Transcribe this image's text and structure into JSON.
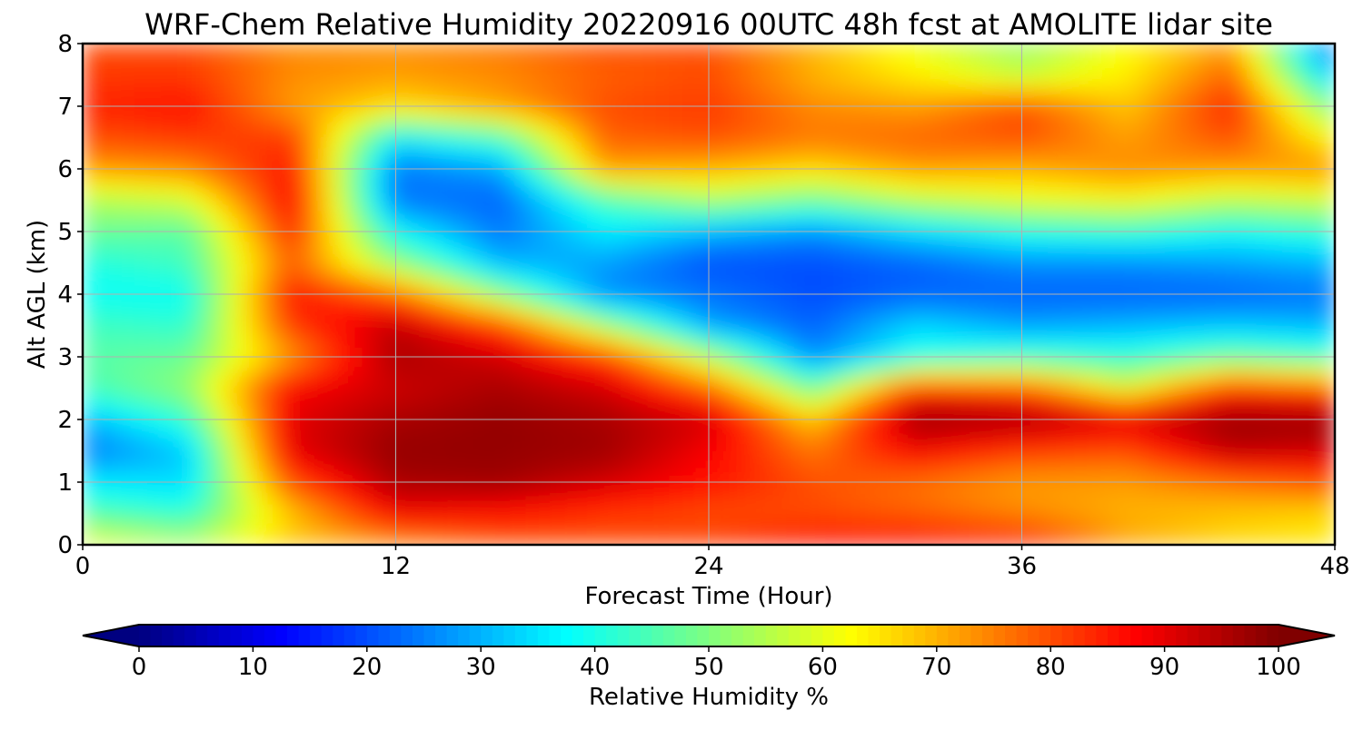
{
  "chart_data": {
    "type": "heatmap",
    "title": "WRF-Chem Relative Humidity 20220916 00UTC 48h fcst at AMOLITE lidar site",
    "xlabel": "Forecast Time (Hour)",
    "ylabel": "Alt AGL (km)",
    "xlim": [
      0,
      48
    ],
    "ylim": [
      0,
      8
    ],
    "x_ticks": [
      "0",
      "12",
      "24",
      "36",
      "48"
    ],
    "y_ticks": [
      "0",
      "1",
      "2",
      "3",
      "4",
      "5",
      "6",
      "7",
      "8"
    ],
    "grid": true,
    "colormap": "jet",
    "colorbar": {
      "label": "Relative Humidity %",
      "orientation": "horizontal",
      "extend": "both",
      "range": [
        0,
        100
      ],
      "ticks": [
        "0",
        "10",
        "20",
        "30",
        "40",
        "50",
        "60",
        "70",
        "80",
        "90",
        "100"
      ]
    },
    "x": [
      0,
      4,
      8,
      12,
      16,
      20,
      24,
      28,
      32,
      36,
      40,
      44,
      48
    ],
    "y": [
      0,
      0.5,
      1,
      1.5,
      2,
      2.5,
      3,
      3.5,
      4,
      4.5,
      5,
      5.5,
      6,
      6.5,
      7,
      7.5,
      8
    ],
    "z": [
      [
        62,
        56,
        68,
        72,
        78,
        80,
        82,
        88,
        90,
        88,
        72,
        66,
        64
      ],
      [
        46,
        42,
        68,
        88,
        86,
        82,
        80,
        80,
        78,
        74,
        70,
        68,
        66
      ],
      [
        36,
        34,
        80,
        96,
        97,
        92,
        86,
        80,
        76,
        72,
        72,
        76,
        80
      ],
      [
        24,
        32,
        90,
        98,
        98,
        97,
        88,
        76,
        88,
        82,
        80,
        94,
        92
      ],
      [
        30,
        42,
        90,
        96,
        98,
        96,
        92,
        68,
        98,
        97,
        92,
        98,
        98
      ],
      [
        44,
        52,
        88,
        92,
        96,
        92,
        78,
        48,
        84,
        80,
        60,
        84,
        80
      ],
      [
        46,
        48,
        72,
        96,
        92,
        82,
        56,
        26,
        40,
        44,
        42,
        48,
        44
      ],
      [
        44,
        42,
        82,
        94,
        82,
        54,
        28,
        22,
        34,
        28,
        30,
        32,
        30
      ],
      [
        38,
        38,
        86,
        78,
        52,
        26,
        24,
        20,
        22,
        22,
        22,
        22,
        24
      ],
      [
        40,
        44,
        78,
        52,
        30,
        28,
        20,
        20,
        22,
        26,
        26,
        28,
        30
      ],
      [
        48,
        46,
        84,
        38,
        24,
        36,
        30,
        26,
        34,
        40,
        42,
        38,
        42
      ],
      [
        54,
        58,
        88,
        24,
        22,
        44,
        54,
        48,
        56,
        60,
        62,
        56,
        58
      ],
      [
        72,
        74,
        86,
        24,
        28,
        72,
        70,
        66,
        72,
        70,
        74,
        72,
        74
      ],
      [
        80,
        82,
        82,
        36,
        44,
        78,
        80,
        76,
        78,
        80,
        72,
        80,
        62
      ],
      [
        84,
        86,
        72,
        66,
        72,
        80,
        82,
        74,
        72,
        80,
        68,
        84,
        48
      ],
      [
        82,
        82,
        74,
        72,
        74,
        78,
        80,
        70,
        64,
        56,
        64,
        78,
        30
      ],
      [
        80,
        80,
        74,
        74,
        76,
        80,
        80,
        70,
        60,
        52,
        62,
        72,
        18
      ]
    ]
  }
}
